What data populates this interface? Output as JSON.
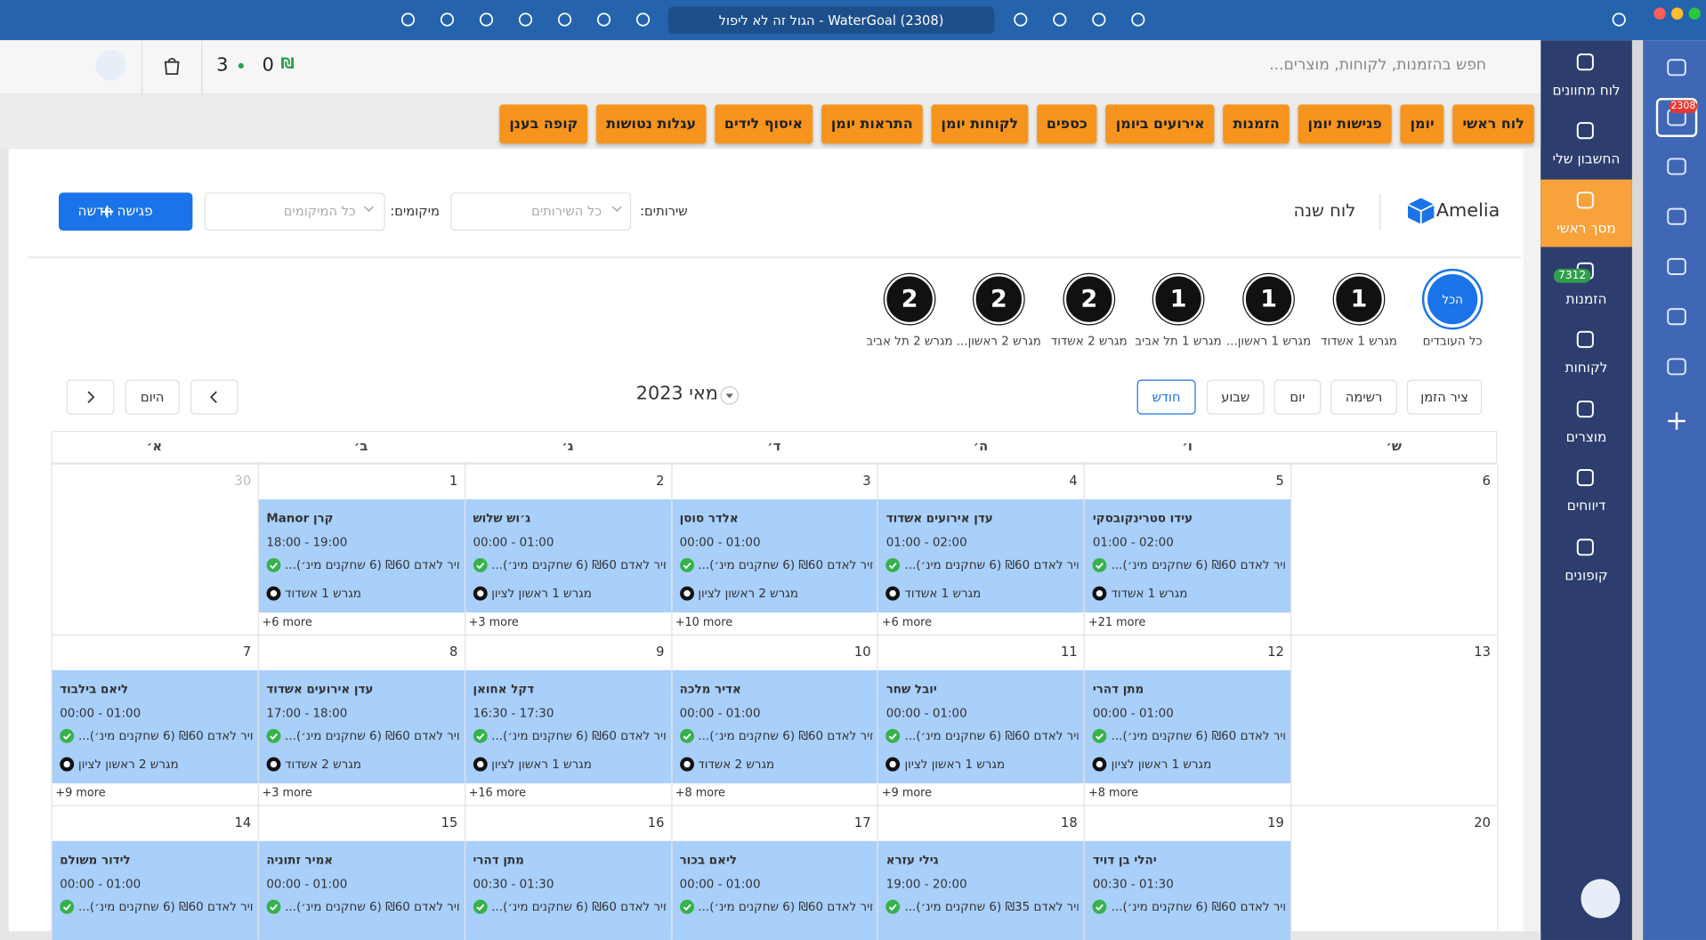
{
  "browser": {
    "tab_title": "WaterGoal (2308) - הגול זה לא ליפול"
  },
  "app_strip": {
    "badge": "2308"
  },
  "sidebar": {
    "items": [
      {
        "label": "לוח מחוונים"
      },
      {
        "label": "החשבון שלי"
      },
      {
        "label": "מסך ראשי",
        "active": true
      },
      {
        "label": "הזמנות",
        "badge": "7312"
      },
      {
        "label": "לקוחות"
      },
      {
        "label": "מוצרים"
      },
      {
        "label": "דיווחים"
      },
      {
        "label": "קופונים"
      }
    ]
  },
  "topbar": {
    "search_placeholder": "חפש בהזמנות, לקוחות, מוצרים...",
    "currency": "₪",
    "balance": "0",
    "count": "3"
  },
  "nav": {
    "buttons": [
      "לוח ראשי",
      "יומן",
      "פגישות יומן",
      "הזמנות",
      "אירועים ביומן",
      "כספים",
      "לקוחות יומן",
      "התראות יומן",
      "איסוף לידים",
      "עגלות נטושות",
      "קופה בענן"
    ]
  },
  "header": {
    "brand": "Amelia",
    "title": "לוח שנה",
    "services_label": "שירותים:",
    "services_value": "כל השירותים",
    "locations_label": "מיקומים:",
    "locations_value": "כל המיקומים",
    "new_button": "פגישה חדשה"
  },
  "employees": [
    {
      "avatar": "הכל",
      "name": "כל העובדים",
      "selected": true
    },
    {
      "avatar": "1",
      "name": "מגרש 1 אשדוד"
    },
    {
      "avatar": "1",
      "name": "מגרש 1 ראשון..."
    },
    {
      "avatar": "1",
      "name": "מגרש 1 תל אביב"
    },
    {
      "avatar": "2",
      "name": "מגרש 2 אשדוד"
    },
    {
      "avatar": "2",
      "name": "מגרש 2 ראשון..."
    },
    {
      "avatar": "2",
      "name": "מגרש 2 תל אביב"
    }
  ],
  "toolbar": {
    "views": [
      {
        "label": "ציר הזמן"
      },
      {
        "label": "רשימה"
      },
      {
        "label": "יום"
      },
      {
        "label": "שבוע"
      },
      {
        "label": "חודש",
        "active": true
      }
    ],
    "month": "מאי 2023",
    "today": "היום"
  },
  "calendar": {
    "weekdays": [
      "א׳",
      "ב׳",
      "ג׳",
      "ד׳",
      "ה׳",
      "ו׳",
      "ש׳"
    ],
    "weeks": [
      {
        "days": [
          {
            "day": "30",
            "other_month": true
          },
          {
            "day": "1",
            "event": {
              "name": "קרן Manor",
              "time": "18:00 - 19:00",
              "service": "...חיר לאדם ₪60 (6 שחקנים מינ׳)",
              "location": "מגרש 1 אשדוד"
            },
            "more": "+6 more"
          },
          {
            "day": "2",
            "event": {
              "name": "ג׳וש שלוש",
              "time": "00:00 - 01:00",
              "service": "...חיר לאדם ₪60 (6 שחקנים מינ׳)",
              "location": "מגרש 1 ראשון לציון"
            },
            "more": "+3 more"
          },
          {
            "day": "3",
            "event": {
              "name": "אלדר סוסן",
              "time": "00:00 - 01:00",
              "service": "...חיר לאדם ₪60 (6 שחקנים מינ׳)",
              "location": "מגרש 2 ראשון לציון"
            },
            "more": "+10 more"
          },
          {
            "day": "4",
            "event": {
              "name": "עדן אירועים אשדוד",
              "time": "01:00 - 02:00",
              "service": "...חיר לאדם ₪60 (6 שחקנים מינ׳)",
              "location": "מגרש 1 אשדוד"
            },
            "more": "+6 more"
          },
          {
            "day": "5",
            "event": {
              "name": "עידו סטרינקובסקי",
              "time": "01:00 - 02:00",
              "service": "...חיר לאדם ₪60 (6 שחקנים מינ׳)",
              "location": "מגרש 1 אשדוד"
            },
            "more": "+21 more"
          },
          {
            "day": "6"
          }
        ]
      },
      {
        "days": [
          {
            "day": "7",
            "event": {
              "name": "ליאם בילבוד",
              "time": "00:00 - 01:00",
              "service": "...חיר לאדם ₪60 (6 שחקנים מינ׳)",
              "location": "מגרש 2 ראשון לציון"
            },
            "more": "+9 more"
          },
          {
            "day": "8",
            "event": {
              "name": "עדן אירועים אשדוד",
              "time": "17:00 - 18:00",
              "service": "...חיר לאדם ₪60 (6 שחקנים מינ׳)",
              "location": "מגרש 2 אשדוד"
            },
            "more": "+3 more"
          },
          {
            "day": "9",
            "event": {
              "name": "דקל אחואן",
              "time": "16:30 - 17:30",
              "service": "...חיר לאדם ₪60 (6 שחקנים מינ׳)",
              "location": "מגרש 1 ראשון לציון"
            },
            "more": "+16 more"
          },
          {
            "day": "10",
            "event": {
              "name": "אדיר מלכה",
              "time": "00:00 - 01:00",
              "service": "...חיר לאדם ₪60 (6 שחקנים מינ׳)",
              "location": "מגרש 2 אשדוד"
            },
            "more": "+8 more"
          },
          {
            "day": "11",
            "event": {
              "name": "יובל שחר",
              "time": "00:00 - 01:00",
              "service": "...חיר לאדם ₪60 (6 שחקנים מינ׳)",
              "location": "מגרש 1 ראשון לציון"
            },
            "more": "+9 more"
          },
          {
            "day": "12",
            "event": {
              "name": "מתן דהרי",
              "time": "00:00 - 01:00",
              "service": "...חיר לאדם ₪60 (6 שחקנים מינ׳)",
              "location": "מגרש 1 ראשון לציון"
            },
            "more": "+8 more"
          },
          {
            "day": "13"
          }
        ]
      },
      {
        "days": [
          {
            "day": "14",
            "event": {
              "name": "לידור משולם",
              "time": "00:00 - 01:00",
              "service": "...חיר לאדם ₪60 (6 שחקנים מינ׳)"
            }
          },
          {
            "day": "15",
            "event": {
              "name": "אמיר זתוניה",
              "time": "00:00 - 01:00",
              "service": "...חיר לאדם ₪60 (6 שחקנים מינ׳)"
            }
          },
          {
            "day": "16",
            "event": {
              "name": "מתן דהרי",
              "time": "00:30 - 01:30",
              "service": "...חיר לאדם ₪60 (6 שחקנים מינ׳)"
            }
          },
          {
            "day": "17",
            "event": {
              "name": "ליאם בכור",
              "time": "00:00 - 01:00",
              "service": "...חיר לאדם ₪60 (6 שחקנים מינ׳)"
            }
          },
          {
            "day": "18",
            "event": {
              "name": "גילי עזרא",
              "time": "19:00 - 20:00",
              "service": "...חיר לאדם ₪35 (6 שחקנים מינ׳)"
            }
          },
          {
            "day": "19",
            "event": {
              "name": "יהלי בן דויד",
              "time": "00:30 - 01:30",
              "service": "...חיר לאדם ₪60 (6 שחקנים מינ׳)"
            }
          },
          {
            "day": "20"
          }
        ]
      }
    ]
  }
}
